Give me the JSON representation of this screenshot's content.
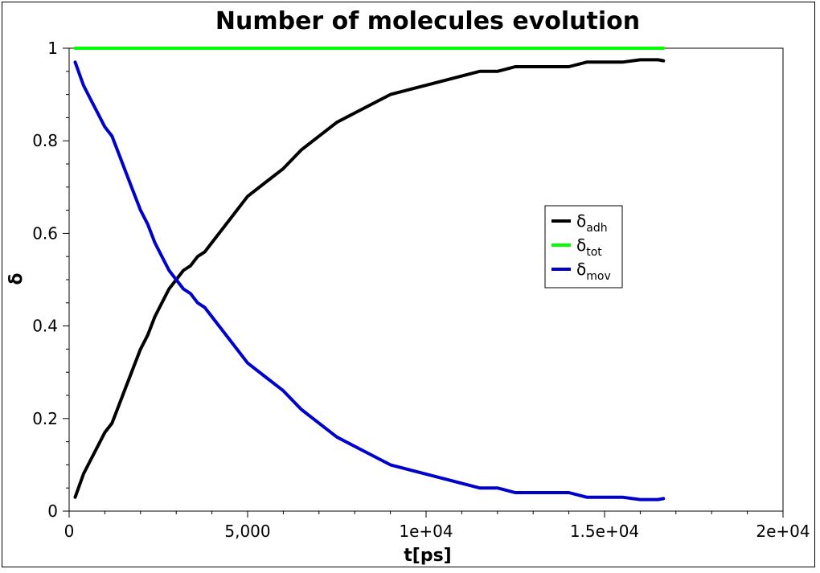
{
  "chart_data": {
    "type": "line",
    "title": "Number of molecules evolution",
    "xlabel": "t[ps]",
    "ylabel": "δ",
    "xlim": [
      0,
      20000
    ],
    "ylim": [
      0,
      1
    ],
    "x_ticks": [
      {
        "value": 0,
        "label": "0"
      },
      {
        "value": 5000,
        "label": "5,000"
      },
      {
        "value": 10000,
        "label": "1e+04"
      },
      {
        "value": 15000,
        "label": "1.5e+04"
      },
      {
        "value": 20000,
        "label": "2e+04"
      }
    ],
    "y_ticks": [
      {
        "value": 0,
        "label": "0"
      },
      {
        "value": 0.2,
        "label": "0.2"
      },
      {
        "value": 0.4,
        "label": "0.4"
      },
      {
        "value": 0.6,
        "label": "0.6"
      },
      {
        "value": 0.8,
        "label": "0.8"
      },
      {
        "value": 1,
        "label": "1"
      }
    ],
    "grid": false,
    "legend_position": "right",
    "series": [
      {
        "name": "δ",
        "subscript": "adh",
        "color": "#000000",
        "x": [
          170,
          400,
          600,
          800,
          1000,
          1200,
          1400,
          1600,
          1800,
          2000,
          2200,
          2400,
          2600,
          2800,
          3000,
          3200,
          3400,
          3600,
          3800,
          4000,
          4500,
          5000,
          5500,
          6000,
          6500,
          7000,
          7500,
          8000,
          8500,
          9000,
          9500,
          10000,
          10500,
          11000,
          11500,
          12000,
          12500,
          13000,
          13500,
          14000,
          14500,
          15000,
          15500,
          16000,
          16500,
          16650
        ],
        "y": [
          0.03,
          0.08,
          0.11,
          0.14,
          0.17,
          0.19,
          0.23,
          0.27,
          0.31,
          0.35,
          0.38,
          0.42,
          0.45,
          0.48,
          0.5,
          0.52,
          0.53,
          0.55,
          0.56,
          0.58,
          0.63,
          0.68,
          0.71,
          0.74,
          0.78,
          0.81,
          0.84,
          0.86,
          0.88,
          0.9,
          0.91,
          0.92,
          0.93,
          0.94,
          0.95,
          0.95,
          0.96,
          0.96,
          0.96,
          0.96,
          0.97,
          0.97,
          0.97,
          0.975,
          0.975,
          0.973
        ]
      },
      {
        "name": "δ",
        "subscript": "tot",
        "color": "#00ff00",
        "x": [
          170,
          16650
        ],
        "y": [
          1.0,
          1.0
        ]
      },
      {
        "name": "δ",
        "subscript": "mov",
        "color": "#0000cc",
        "x": [
          170,
          400,
          600,
          800,
          1000,
          1200,
          1400,
          1600,
          1800,
          2000,
          2200,
          2400,
          2600,
          2800,
          3000,
          3200,
          3400,
          3600,
          3800,
          4000,
          4500,
          5000,
          5500,
          6000,
          6500,
          7000,
          7500,
          8000,
          8500,
          9000,
          9500,
          10000,
          10500,
          11000,
          11500,
          12000,
          12500,
          13000,
          13500,
          14000,
          14500,
          15000,
          15500,
          16000,
          16500,
          16650
        ],
        "y": [
          0.97,
          0.92,
          0.89,
          0.86,
          0.83,
          0.81,
          0.77,
          0.73,
          0.69,
          0.65,
          0.62,
          0.58,
          0.55,
          0.52,
          0.5,
          0.48,
          0.47,
          0.45,
          0.44,
          0.42,
          0.37,
          0.32,
          0.29,
          0.26,
          0.22,
          0.19,
          0.16,
          0.14,
          0.12,
          0.1,
          0.09,
          0.08,
          0.07,
          0.06,
          0.05,
          0.05,
          0.04,
          0.04,
          0.04,
          0.04,
          0.03,
          0.03,
          0.03,
          0.025,
          0.025,
          0.027
        ]
      }
    ]
  }
}
